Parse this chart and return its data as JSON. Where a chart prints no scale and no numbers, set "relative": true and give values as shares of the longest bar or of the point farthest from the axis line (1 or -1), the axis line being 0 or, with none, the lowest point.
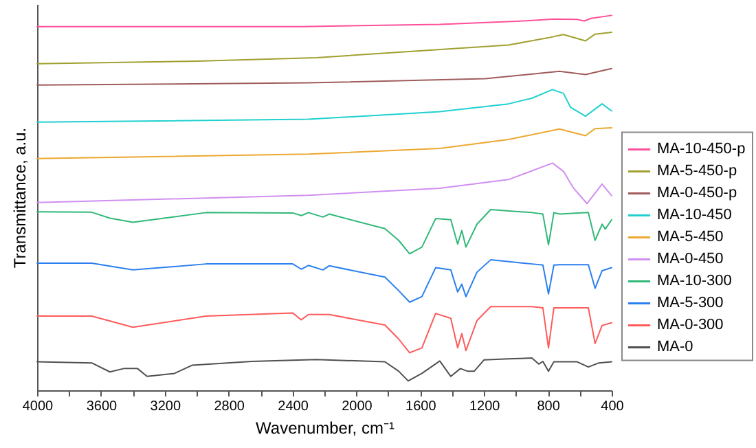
{
  "chart_data": {
    "type": "line",
    "relative": true,
    "xlabel": "Wavenumber, cm⁻¹",
    "ylabel": "Transmittance, a.u.",
    "legend": "right",
    "xlim": [
      4000,
      400
    ],
    "xticks": [
      4000,
      {
        "value": 3800,
        "label": null
      },
      3600,
      {
        "value": 3400,
        "label": null
      },
      3200,
      {
        "value": 3000,
        "label": null
      },
      2800,
      {
        "value": 2600,
        "label": null
      },
      2400,
      {
        "value": 2200,
        "label": null
      },
      2000,
      {
        "value": 1800,
        "label": null
      },
      1600,
      {
        "value": 1400,
        "label": null
      },
      1200,
      {
        "value": 1000,
        "label": null
      },
      800,
      {
        "value": 600,
        "label": null
      },
      400
    ],
    "series": [
      {
        "name": "MA-10-450-p",
        "color": "#ff4f9a",
        "x": [
          4000,
          3000,
          2338,
          1477,
          1000,
          762,
          616,
          572,
          529,
          400
        ],
        "values": [
          0.97,
          0.97,
          0.97,
          0.976,
          0.984,
          0.99,
          0.989,
          0.985,
          0.992,
          1
        ]
      },
      {
        "name": "MA-5-450-p",
        "color": "#a0a030",
        "x": [
          4000,
          3000,
          2250,
          1800,
          1046,
          800,
          702,
          564,
          504,
          400
        ],
        "values": [
          0.871,
          0.878,
          0.887,
          0.9,
          0.921,
          0.94,
          0.949,
          0.932,
          0.95,
          0.955
        ]
      },
      {
        "name": "MA-0-450-p",
        "color": "#a05c5c",
        "x": [
          4000,
          2300,
          1192,
          727,
          564,
          400
        ],
        "values": [
          0.814,
          0.82,
          0.831,
          0.851,
          0.842,
          0.858
        ]
      },
      {
        "name": "MA-10-450",
        "color": "#20d0d0",
        "x": [
          4000,
          2300,
          1477,
          1046,
          900,
          771,
          702,
          658,
          564,
          460,
          400
        ],
        "values": [
          0.715,
          0.723,
          0.743,
          0.764,
          0.779,
          0.802,
          0.792,
          0.755,
          0.731,
          0.764,
          0.745
        ]
      },
      {
        "name": "MA-5-450",
        "color": "#eca830",
        "x": [
          4000,
          2300,
          1477,
          1046,
          727,
          564,
          504,
          400
        ],
        "values": [
          0.618,
          0.63,
          0.645,
          0.669,
          0.697,
          0.679,
          0.698,
          0.7
        ]
      },
      {
        "name": "MA-0-450",
        "color": "#d08ff0",
        "x": [
          4000,
          2300,
          1477,
          1046,
          771,
          702,
          642,
          555,
          460,
          400
        ],
        "values": [
          0.501,
          0.52,
          0.539,
          0.562,
          0.606,
          0.584,
          0.541,
          0.498,
          0.55,
          0.519
        ]
      },
      {
        "name": "MA-10-300",
        "color": "#30b878",
        "x": [
          4000,
          3658,
          3544,
          3400,
          2941,
          2398,
          2345,
          2300,
          2209,
          2170,
          1821,
          1735,
          1666,
          1589,
          1503,
          1408,
          1365,
          1339,
          1313,
          1244,
          1158,
          900,
          831,
          796,
          762,
          727,
          546,
          504,
          460,
          440,
          400
        ],
        "values": [
          0.476,
          0.475,
          0.459,
          0.448,
          0.474,
          0.473,
          0.466,
          0.474,
          0.462,
          0.47,
          0.431,
          0.4,
          0.364,
          0.382,
          0.458,
          0.455,
          0.39,
          0.426,
          0.382,
          0.443,
          0.482,
          0.474,
          0.47,
          0.388,
          0.474,
          0.47,
          0.474,
          0.4,
          0.443,
          0.43,
          0.455
        ]
      },
      {
        "name": "MA-5-300",
        "color": "#2a7ff0",
        "x": [
          4000,
          3658,
          3400,
          2941,
          2398,
          2345,
          2300,
          2209,
          2170,
          1821,
          1735,
          1666,
          1589,
          1503,
          1408,
          1365,
          1339,
          1313,
          1244,
          1158,
          900,
          831,
          796,
          762,
          727,
          546,
          504,
          460,
          400
        ],
        "values": [
          0.339,
          0.339,
          0.321,
          0.337,
          0.337,
          0.323,
          0.333,
          0.321,
          0.332,
          0.302,
          0.266,
          0.235,
          0.25,
          0.327,
          0.321,
          0.262,
          0.283,
          0.25,
          0.315,
          0.348,
          0.337,
          0.334,
          0.257,
          0.334,
          0.335,
          0.335,
          0.272,
          0.319,
          0.327
        ]
      },
      {
        "name": "MA-0-300",
        "color": "#ff5a5a",
        "x": [
          4000,
          3658,
          3400,
          2941,
          2398,
          2345,
          2300,
          2170,
          1821,
          1735,
          1666,
          1589,
          1503,
          1408,
          1365,
          1339,
          1313,
          1244,
          1158,
          900,
          831,
          796,
          762,
          546,
          504,
          460,
          400
        ],
        "values": [
          0.198,
          0.198,
          0.168,
          0.198,
          0.206,
          0.188,
          0.202,
          0.202,
          0.174,
          0.137,
          0.1,
          0.113,
          0.205,
          0.192,
          0.113,
          0.151,
          0.106,
          0.186,
          0.223,
          0.223,
          0.22,
          0.113,
          0.22,
          0.22,
          0.125,
          0.173,
          0.18
        ]
      },
      {
        "name": "MA-0",
        "color": "#505050",
        "x": [
          4000,
          3658,
          3544,
          3457,
          3371,
          3311,
          3139,
          3027,
          2656,
          2252,
          1821,
          1735,
          1675,
          1589,
          1477,
          1408,
          1348,
          1304,
          1261,
          1200,
          1046,
          900,
          857,
          831,
          796,
          762,
          616,
          546,
          480,
          400
        ],
        "values": [
          0.076,
          0.073,
          0.049,
          0.058,
          0.058,
          0.037,
          0.045,
          0.067,
          0.077,
          0.082,
          0.076,
          0.051,
          0.025,
          0.045,
          0.078,
          0.037,
          0.058,
          0.051,
          0.051,
          0.081,
          0.084,
          0.086,
          0.07,
          0.077,
          0.051,
          0.076,
          0.076,
          0.062,
          0.073,
          0.076
        ]
      }
    ]
  }
}
